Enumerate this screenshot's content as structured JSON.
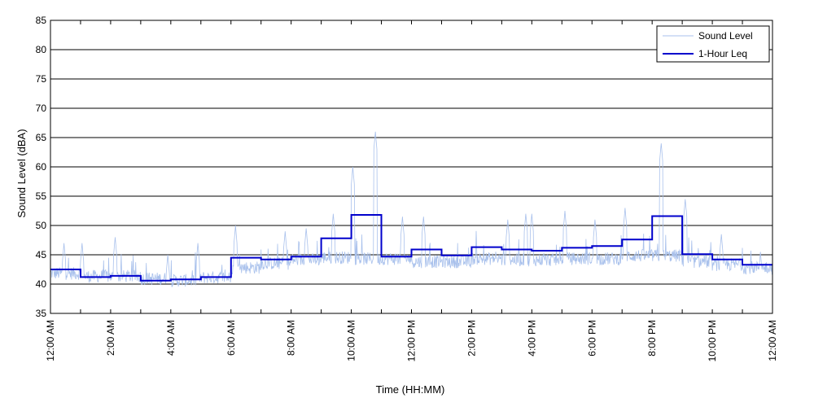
{
  "chart_data": {
    "type": "line",
    "title": "",
    "xlabel": "Time (HH:MM)",
    "ylabel": "Sound Level (dBA)",
    "ylim": [
      35,
      85
    ],
    "yticks": [
      35,
      40,
      45,
      50,
      55,
      60,
      65,
      70,
      75,
      80,
      85
    ],
    "xlim": [
      0,
      24
    ],
    "x_unit": "hours since 12:00 AM",
    "xticks": [
      0,
      2,
      4,
      6,
      8,
      10,
      12,
      14,
      16,
      18,
      20,
      22,
      24
    ],
    "xtick_labels": [
      "12:00 AM",
      "2:00 AM",
      "4:00 AM",
      "6:00 AM",
      "8:00 AM",
      "10:00 AM",
      "12:00 PM",
      "2:00 PM",
      "4:00 PM",
      "6:00 PM",
      "8:00 PM",
      "10:00 PM",
      "12:00 AM"
    ],
    "grid": "horizontal",
    "legend_position": "top-right",
    "colors": {
      "sound_level": "#a9c1ec",
      "leq": "#0000cc"
    },
    "series": [
      {
        "name": "Sound Level",
        "style": "thin light-blue line",
        "hourly_baseline": [
          41.5,
          41.0,
          41.0,
          40.6,
          40.3,
          40.8,
          42.5,
          43.2,
          43.8,
          44.2,
          44.0,
          44.0,
          43.5,
          43.5,
          44.0,
          43.8,
          43.8,
          44.0,
          44.0,
          44.5,
          44.5,
          43.5,
          43.0,
          42.5
        ],
        "peaks": [
          {
            "x": 0.45,
            "y": 47.0
          },
          {
            "x": 1.05,
            "y": 47.0
          },
          {
            "x": 2.15,
            "y": 48.0
          },
          {
            "x": 3.9,
            "y": 45.0
          },
          {
            "x": 4.9,
            "y": 47.0
          },
          {
            "x": 6.15,
            "y": 50.0
          },
          {
            "x": 7.8,
            "y": 49.0
          },
          {
            "x": 8.5,
            "y": 49.5
          },
          {
            "x": 9.4,
            "y": 52.0
          },
          {
            "x": 10.05,
            "y": 60.0
          },
          {
            "x": 10.8,
            "y": 66.0
          },
          {
            "x": 11.7,
            "y": 51.5
          },
          {
            "x": 12.4,
            "y": 51.5
          },
          {
            "x": 15.2,
            "y": 51.0
          },
          {
            "x": 15.8,
            "y": 52.0
          },
          {
            "x": 16.0,
            "y": 52.0
          },
          {
            "x": 17.1,
            "y": 52.5
          },
          {
            "x": 18.1,
            "y": 51.0
          },
          {
            "x": 19.1,
            "y": 53.0
          },
          {
            "x": 20.3,
            "y": 64.0
          },
          {
            "x": 21.1,
            "y": 54.5
          },
          {
            "x": 22.3,
            "y": 48.5
          },
          {
            "x": 23.6,
            "y": 45.5
          }
        ]
      },
      {
        "name": "1-Hour Leq",
        "style": "thick dark-blue step line",
        "hourly_x": [
          0,
          1,
          2,
          3,
          4,
          5,
          6,
          7,
          8,
          9,
          10,
          11,
          12,
          13,
          14,
          15,
          16,
          17,
          18,
          19,
          20,
          21,
          22,
          23
        ],
        "values": [
          42.5,
          41.2,
          41.4,
          40.6,
          40.8,
          41.2,
          44.5,
          44.2,
          44.7,
          47.8,
          51.8,
          44.7,
          45.9,
          44.9,
          46.3,
          45.9,
          45.7,
          46.2,
          46.5,
          47.6,
          51.6,
          45.1,
          44.2,
          43.3
        ]
      }
    ]
  }
}
